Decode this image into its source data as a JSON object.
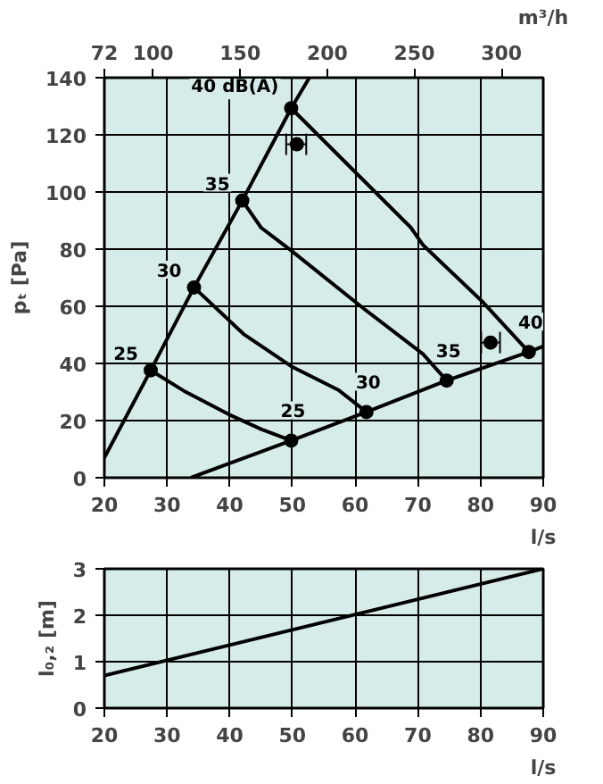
{
  "chart_data": [
    {
      "type": "line",
      "xlabel": "l/s",
      "ylabel": "pₜ [Pa]",
      "x2label": "m³/h",
      "xlim": [
        20,
        90
      ],
      "xticks": [
        20,
        30,
        40,
        50,
        60,
        70,
        80,
        90
      ],
      "x2lim": [
        72,
        324
      ],
      "x2ticks": [
        72,
        100,
        150,
        200,
        250,
        300
      ],
      "ylim": [
        0,
        140
      ],
      "yticks": [
        0,
        20,
        40,
        60,
        80,
        100,
        120,
        140
      ],
      "grid": true,
      "series": [
        {
          "color": "#000000",
          "x": [
            20,
            27.4,
            34.3,
            42,
            49.8,
            52.7
          ],
          "values": [
            7,
            37.6,
            66.6,
            97,
            129.3,
            140
          ]
        },
        {
          "color": "#000000",
          "x": [
            33.8,
            49.8,
            61.8,
            74.6,
            87.7,
            90
          ],
          "values": [
            0,
            13,
            23,
            34,
            44,
            46
          ]
        },
        {
          "color": "#000000",
          "x": [
            27.4,
            32.6,
            40,
            45,
            49.8
          ],
          "values": [
            37.6,
            30.5,
            22,
            17,
            13
          ]
        },
        {
          "color": "#000000",
          "x": [
            34.3,
            42.2,
            49.8,
            57.4,
            61.8
          ],
          "values": [
            66.6,
            50.3,
            39,
            30.6,
            23
          ]
        },
        {
          "color": "#000000",
          "x": [
            42,
            45,
            49.8,
            61.3,
            70.8,
            74.6
          ],
          "values": [
            97,
            87.5,
            79.5,
            59.3,
            43.3,
            34
          ]
        },
        {
          "color": "#000000",
          "x": [
            49.8,
            68.9,
            70.8,
            80.4,
            87.7
          ],
          "values": [
            129.3,
            87.5,
            81.5,
            61.4,
            44
          ]
        },
        {
          "type": "scatter",
          "marker": "circle",
          "color": "#000000",
          "x": [
            27.4,
            34.3,
            42,
            49.8,
            49.8,
            61.8,
            74.6,
            87.7
          ],
          "values": [
            37.6,
            66.6,
            97,
            129.3,
            13,
            23,
            34,
            44
          ]
        },
        {
          "type": "scatter",
          "marker": "circle",
          "color": "#000000",
          "x": [
            50.7,
            81.6
          ],
          "values": [
            116.7,
            47.3
          ],
          "xerrors": [
            [
              49,
              52.2
            ],
            [
              80.1,
              83.1
            ]
          ]
        }
      ],
      "annotations": [
        {
          "text": "40 dB(A)",
          "x": 49.8,
          "y": 129.3
        },
        {
          "text": "35",
          "x": 42,
          "y": 97
        },
        {
          "text": "30",
          "x": 34.3,
          "y": 66.6
        },
        {
          "text": "25",
          "x": 27.4,
          "y": 37.6
        },
        {
          "text": "25",
          "x": 49.8,
          "y": 13
        },
        {
          "text": "30",
          "x": 61.8,
          "y": 23
        },
        {
          "text": "35",
          "x": 74.6,
          "y": 34
        },
        {
          "text": "40",
          "x": 87.7,
          "y": 44
        }
      ]
    },
    {
      "type": "line",
      "xlabel": "l/s",
      "ylabel": "l₀,₂ [m]",
      "xlim": [
        20,
        90
      ],
      "xticks": [
        20,
        30,
        40,
        50,
        60,
        70,
        80,
        90
      ],
      "ylim": [
        0,
        3
      ],
      "yticks": [
        0,
        1,
        2,
        3
      ],
      "grid": true,
      "series": [
        {
          "color": "#000000",
          "x": [
            20,
            90
          ],
          "values": [
            0.7,
            3
          ]
        }
      ]
    }
  ]
}
